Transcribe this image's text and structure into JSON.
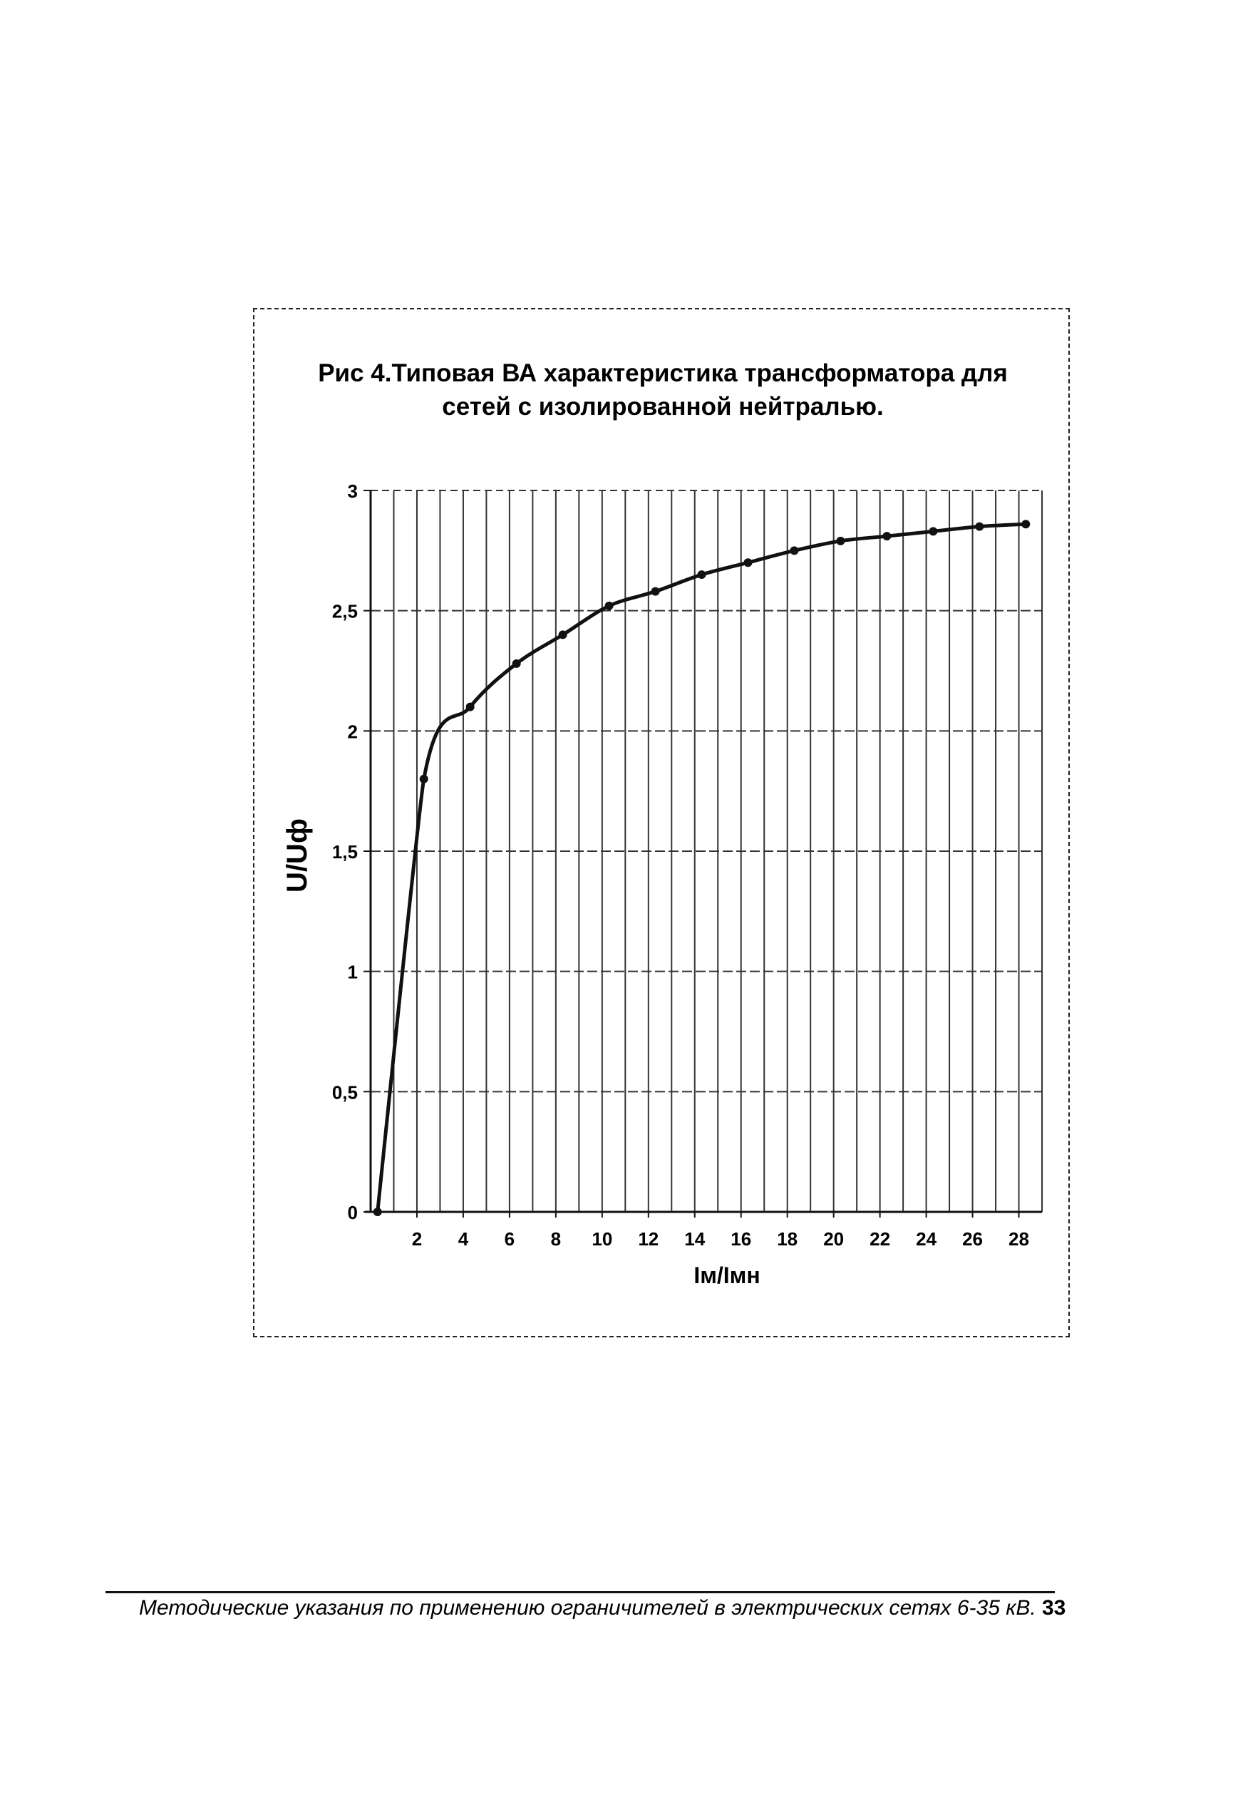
{
  "chart_data": {
    "type": "line",
    "title": "Рис 4.Типовая ВА характеристика трансформатора для сетей с изолированной нейтралью.",
    "xlabel": "Iм/Iмн",
    "ylabel": "U/Uф",
    "xlim": [
      0,
      29
    ],
    "ylim": [
      0,
      3
    ],
    "x_ticks": [
      2,
      4,
      6,
      8,
      10,
      12,
      14,
      16,
      18,
      20,
      22,
      24,
      26,
      28
    ],
    "y_ticks": [
      0,
      0.5,
      1,
      1.5,
      2,
      2.5,
      3
    ],
    "y_tick_labels": [
      "0",
      "0,5",
      "1",
      "1,5",
      "2",
      "2,5",
      "3"
    ],
    "grid": true,
    "series": [
      {
        "x": [
          0.3,
          2.3,
          4.3,
          6.3,
          8.3,
          10.3,
          12.3,
          14.3,
          16.3,
          18.3,
          20.3,
          22.3,
          24.3,
          26.3,
          28.3
        ],
        "y": [
          0,
          1.8,
          2.1,
          2.28,
          2.4,
          2.52,
          2.58,
          2.65,
          2.7,
          2.75,
          2.79,
          2.81,
          2.83,
          2.85,
          2.86
        ]
      }
    ]
  },
  "footer": {
    "text": "Методические указания по применению ограничителей в электрических сетях 6-35 кВ.",
    "page_number": "33"
  }
}
